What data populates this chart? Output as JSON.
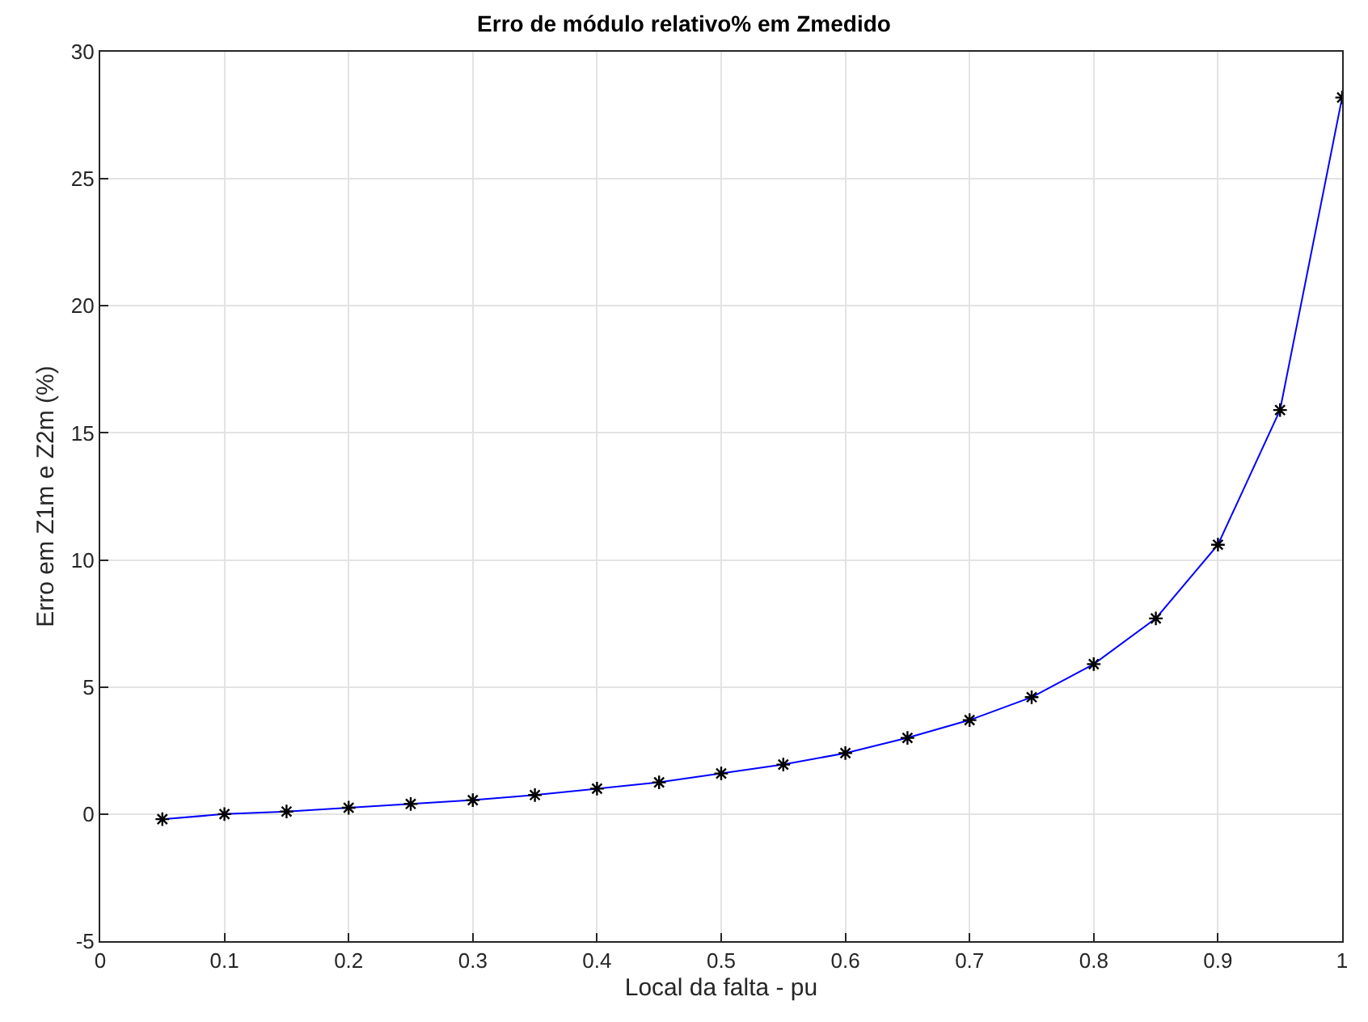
{
  "chart_data": {
    "type": "line",
    "title": "Erro de módulo relativo% em Zmedido",
    "xlabel": "Local da falta - pu",
    "ylabel": "Erro em Z1m e Z2m (%)",
    "x": [
      0.05,
      0.1,
      0.15,
      0.2,
      0.25,
      0.3,
      0.35,
      0.4,
      0.45,
      0.5,
      0.55,
      0.6,
      0.65,
      0.7,
      0.75,
      0.8,
      0.85,
      0.9,
      0.95,
      1.0
    ],
    "series": [
      {
        "color": "#0000ff",
        "colors": [
          "#000000",
          "#000000",
          "#000000",
          "#000000",
          "#000000",
          "#000000",
          "#000000",
          "#000000",
          "#000000",
          "#000000",
          "#000000",
          "#000000",
          "#000000",
          "#000000",
          "#000000",
          "#000000",
          "#000000",
          "#000000",
          "#000000",
          "#000000"
        ],
        "values": [
          -0.2,
          0.0,
          0.1,
          0.25,
          0.4,
          0.55,
          0.75,
          1.0,
          1.25,
          1.6,
          1.95,
          2.4,
          3.0,
          3.7,
          4.6,
          5.9,
          7.7,
          10.6,
          15.9,
          28.2
        ]
      }
    ],
    "xlim": [
      0,
      1
    ],
    "xticks": [
      0,
      0.1,
      0.2,
      0.3,
      0.4,
      0.5,
      0.6,
      0.7,
      0.8,
      0.9,
      1
    ],
    "ylim": [
      -5,
      30
    ],
    "yticks": [
      -5,
      0,
      5,
      10,
      15,
      20,
      25,
      30
    ],
    "grid": true,
    "marker": "cross",
    "line_style": "solid",
    "legend": false
  }
}
